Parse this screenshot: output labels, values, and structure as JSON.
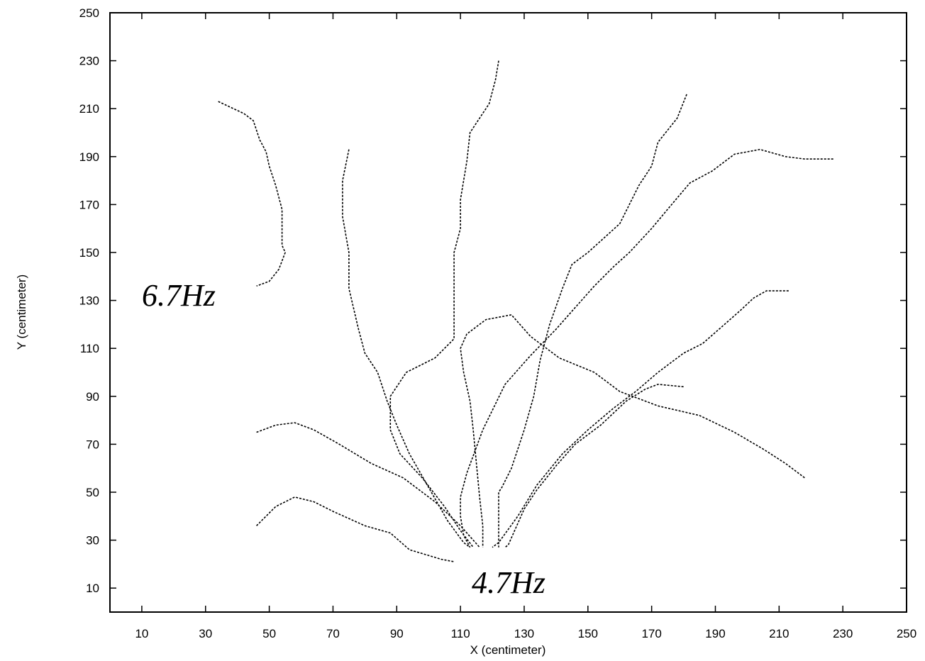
{
  "chart_data": {
    "type": "line",
    "title": "",
    "xlabel": "X (centimeter)",
    "ylabel": "Y (centimeter)",
    "xlim": [
      0,
      250
    ],
    "ylim": [
      0,
      250
    ],
    "xticks": [
      10,
      30,
      50,
      70,
      90,
      110,
      130,
      150,
      170,
      190,
      210,
      230,
      250
    ],
    "yticks": [
      10,
      30,
      50,
      70,
      90,
      110,
      130,
      150,
      170,
      190,
      210,
      230,
      250
    ],
    "grid": false,
    "legend": "none",
    "annotations": [
      {
        "text": "6.7Hz",
        "x": 25,
        "y": 130
      },
      {
        "text": "4.7Hz",
        "x": 125,
        "y": 13
      }
    ],
    "series": [
      {
        "points": [
          [
            34,
            213
          ],
          [
            42,
            208
          ],
          [
            45,
            205
          ],
          [
            47,
            197
          ],
          [
            49,
            192
          ],
          [
            50,
            186
          ],
          [
            52,
            178
          ],
          [
            54,
            168
          ],
          [
            54,
            160
          ],
          [
            54,
            153
          ],
          [
            55,
            150
          ],
          [
            53,
            143
          ],
          [
            50,
            138
          ],
          [
            46,
            136
          ]
        ]
      },
      {
        "points": [
          [
            75,
            193
          ],
          [
            73,
            180
          ],
          [
            73,
            165
          ],
          [
            75,
            150
          ],
          [
            75,
            135
          ],
          [
            78,
            118
          ],
          [
            80,
            108
          ],
          [
            84,
            100
          ],
          [
            87,
            88
          ],
          [
            90,
            78
          ],
          [
            94,
            66
          ],
          [
            100,
            52
          ],
          [
            106,
            38
          ],
          [
            111,
            29
          ],
          [
            113,
            27
          ]
        ]
      },
      {
        "points": [
          [
            122,
            230
          ],
          [
            121,
            222
          ],
          [
            119,
            212
          ],
          [
            113,
            200
          ],
          [
            112,
            188
          ],
          [
            110,
            172
          ],
          [
            110,
            160
          ],
          [
            108,
            150
          ],
          [
            108,
            130
          ],
          [
            108,
            114
          ],
          [
            102,
            106
          ],
          [
            93,
            100
          ],
          [
            88,
            90
          ],
          [
            88,
            76
          ],
          [
            91,
            66
          ],
          [
            98,
            56
          ],
          [
            105,
            44
          ],
          [
            110,
            34
          ],
          [
            114,
            27
          ]
        ]
      },
      {
        "points": [
          [
            181,
            216
          ],
          [
            178,
            206
          ],
          [
            172,
            196
          ],
          [
            170,
            186
          ],
          [
            166,
            178
          ],
          [
            163,
            170
          ],
          [
            160,
            162
          ],
          [
            155,
            156
          ],
          [
            150,
            150
          ],
          [
            145,
            145
          ],
          [
            142,
            135
          ],
          [
            138,
            120
          ],
          [
            135,
            105
          ],
          [
            133,
            90
          ],
          [
            130,
            76
          ],
          [
            126,
            60
          ],
          [
            123,
            52
          ],
          [
            122,
            50
          ],
          [
            122,
            27
          ]
        ]
      },
      {
        "points": [
          [
            227,
            189
          ],
          [
            218,
            189
          ],
          [
            212,
            190
          ],
          [
            204,
            193
          ],
          [
            196,
            191
          ],
          [
            189,
            184
          ],
          [
            182,
            179
          ],
          [
            175,
            168
          ],
          [
            170,
            160
          ],
          [
            163,
            150
          ],
          [
            158,
            144
          ],
          [
            152,
            136
          ],
          [
            146,
            127
          ],
          [
            140,
            118
          ],
          [
            132,
            107
          ],
          [
            124,
            95
          ],
          [
            117,
            76
          ],
          [
            112,
            58
          ],
          [
            110,
            48
          ],
          [
            110,
            40
          ],
          [
            111,
            32
          ],
          [
            113,
            27
          ]
        ]
      },
      {
        "points": [
          [
            213,
            134
          ],
          [
            206,
            134
          ],
          [
            202,
            131
          ],
          [
            198,
            126
          ],
          [
            192,
            119
          ],
          [
            186,
            112
          ],
          [
            180,
            108
          ],
          [
            172,
            100
          ],
          [
            165,
            92
          ],
          [
            158,
            85
          ],
          [
            150,
            76
          ],
          [
            142,
            66
          ],
          [
            134,
            53
          ],
          [
            128,
            40
          ],
          [
            122,
            29
          ],
          [
            120,
            27
          ]
        ]
      },
      {
        "points": [
          [
            180,
            94
          ],
          [
            172,
            95
          ],
          [
            168,
            93
          ],
          [
            162,
            88
          ],
          [
            154,
            78
          ],
          [
            146,
            70
          ],
          [
            140,
            61
          ],
          [
            134,
            51
          ],
          [
            130,
            43
          ],
          [
            127,
            34
          ],
          [
            125,
            28
          ],
          [
            124,
            27
          ]
        ]
      },
      {
        "points": [
          [
            218,
            56
          ],
          [
            212,
            62
          ],
          [
            205,
            68
          ],
          [
            196,
            75
          ],
          [
            185,
            82
          ],
          [
            172,
            86
          ],
          [
            160,
            92
          ],
          [
            152,
            100
          ],
          [
            141,
            106
          ],
          [
            132,
            115
          ],
          [
            126,
            124
          ],
          [
            118,
            122
          ],
          [
            112,
            116
          ],
          [
            110,
            110
          ],
          [
            111,
            100
          ],
          [
            113,
            88
          ],
          [
            114,
            76
          ],
          [
            115,
            62
          ],
          [
            116,
            48
          ],
          [
            117,
            36
          ],
          [
            117,
            27
          ]
        ]
      },
      {
        "points": [
          [
            46,
            75
          ],
          [
            52,
            78
          ],
          [
            58,
            79
          ],
          [
            64,
            76
          ],
          [
            72,
            70
          ],
          [
            82,
            62
          ],
          [
            92,
            56
          ],
          [
            102,
            46
          ],
          [
            110,
            36
          ],
          [
            116,
            27
          ]
        ]
      },
      {
        "points": [
          [
            46,
            36
          ],
          [
            52,
            44
          ],
          [
            58,
            48
          ],
          [
            64,
            46
          ],
          [
            70,
            42
          ],
          [
            80,
            36
          ],
          [
            88,
            33
          ],
          [
            94,
            26
          ],
          [
            104,
            22
          ],
          [
            108,
            21
          ]
        ]
      }
    ]
  }
}
